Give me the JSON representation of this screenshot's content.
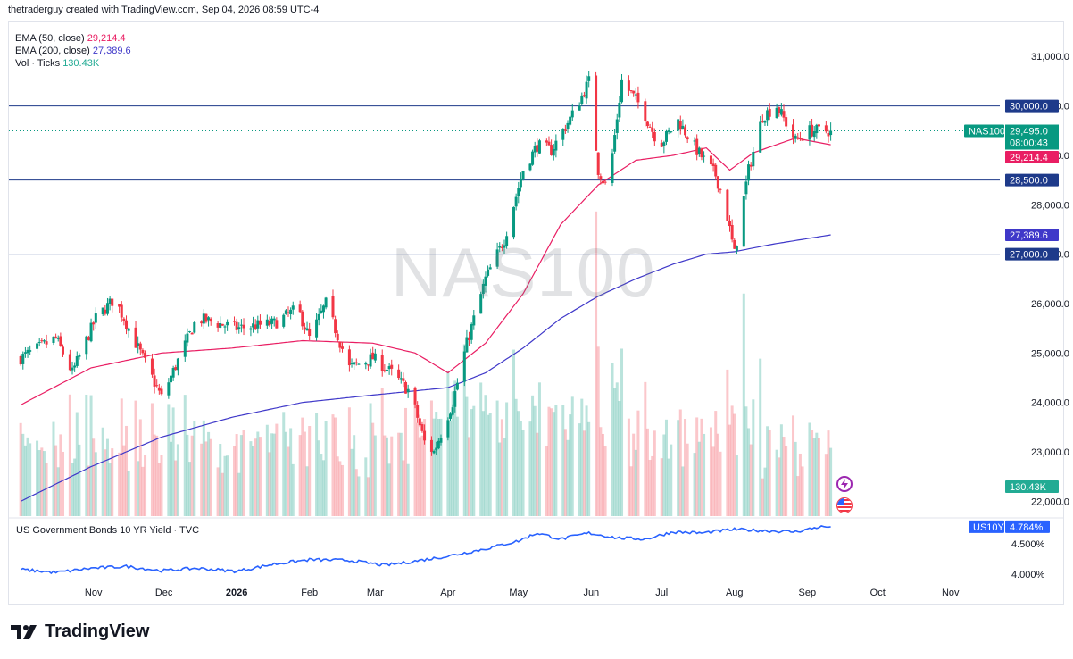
{
  "header": {
    "credit": "thetraderguy created with TradingView.com, Sep 04, 2026 08:59 UTC-4"
  },
  "watermark": "NAS100",
  "legend": {
    "ema50": {
      "label": "EMA (50, close)",
      "value": "29,214.4"
    },
    "ema200": {
      "label": "EMA (200, close)",
      "value": "27,389.6"
    },
    "vol": {
      "label": "Vol · Ticks",
      "value": "130.43K"
    }
  },
  "lower_pane": {
    "title": "US Government Bonds 10 YR Yield · TVC"
  },
  "footer": {
    "brand": "TradingView"
  },
  "colors": {
    "up": "#089981",
    "down": "#f23645",
    "ema50": "#e91e63",
    "ema200": "#3f38c9",
    "level": "#2962ff",
    "yield": "#2962ff",
    "volume_label": "#22ab94"
  },
  "chart_data": [
    {
      "type": "candlestick",
      "symbol": "NAS100",
      "ylim": [
        21700,
        31600
      ],
      "y_ticks": [
        22000,
        23000,
        24000,
        25000,
        26000,
        27000,
        28000,
        29000,
        30000,
        31000
      ],
      "y_tick_labels": [
        "22,000.0",
        "23,000.0",
        "24,000.0",
        "25,000.0",
        "26,000.0",
        "27,000.0",
        "28,000.0",
        "29,000.0",
        "30,000.0",
        "31,000.0"
      ],
      "x_labels": [
        "Nov",
        "Dec",
        "2026",
        "Feb",
        "Mar",
        "Apr",
        "May",
        "Jun",
        "Jul",
        "Aug",
        "Sep",
        "Oct",
        "Nov"
      ],
      "x_label_days": [
        31,
        61,
        92,
        123,
        151,
        182,
        212,
        243,
        273,
        304,
        335,
        365,
        396
      ],
      "candle_range_days": [
        0,
        345
      ],
      "horizontal_levels": [
        {
          "value": 30000,
          "label": "30,000.0"
        },
        {
          "value": 28500,
          "label": "28,500.0"
        },
        {
          "value": 27000,
          "label": "27,000.0"
        }
      ],
      "last_price": {
        "symbol": "NAS100",
        "value": 29495,
        "label": "29,495.0",
        "countdown": "08:00:43"
      },
      "ema50_label": {
        "value": 29214.4,
        "label": "29,214.4"
      },
      "ema200_label": {
        "value": 27389.6,
        "label": "27,389.6"
      },
      "volume_label": "130.43K",
      "close_anchors": [
        [
          0,
          24900
        ],
        [
          15,
          25300
        ],
        [
          22,
          24600
        ],
        [
          32,
          25700
        ],
        [
          40,
          26100
        ],
        [
          52,
          24900
        ],
        [
          60,
          24100
        ],
        [
          75,
          25700
        ],
        [
          84,
          25600
        ],
        [
          92,
          25500
        ],
        [
          108,
          25600
        ],
        [
          118,
          25900
        ],
        [
          123,
          25300
        ],
        [
          130,
          26000
        ],
        [
          140,
          24700
        ],
        [
          150,
          24900
        ],
        [
          158,
          24600
        ],
        [
          166,
          24200
        ],
        [
          172,
          23200
        ],
        [
          176,
          23000
        ],
        [
          184,
          24000
        ],
        [
          190,
          25200
        ],
        [
          198,
          26500
        ],
        [
          206,
          27300
        ],
        [
          214,
          28700
        ],
        [
          220,
          29200
        ],
        [
          226,
          29100
        ],
        [
          236,
          29900
        ],
        [
          242,
          30500
        ],
        [
          246,
          28700
        ],
        [
          250,
          28300
        ],
        [
          256,
          30500
        ],
        [
          264,
          30000
        ],
        [
          272,
          29200
        ],
        [
          280,
          29700
        ],
        [
          288,
          29100
        ],
        [
          296,
          28600
        ],
        [
          300,
          28000
        ],
        [
          304,
          27000
        ],
        [
          310,
          28700
        ],
        [
          316,
          29800
        ],
        [
          322,
          30000
        ],
        [
          330,
          29300
        ],
        [
          336,
          29500
        ],
        [
          345,
          29495
        ]
      ],
      "ema50_anchors": [
        [
          0,
          23950
        ],
        [
          30,
          24700
        ],
        [
          60,
          25000
        ],
        [
          90,
          25100
        ],
        [
          120,
          25250
        ],
        [
          150,
          25200
        ],
        [
          168,
          25000
        ],
        [
          182,
          24600
        ],
        [
          198,
          25200
        ],
        [
          214,
          26200
        ],
        [
          230,
          27600
        ],
        [
          246,
          28400
        ],
        [
          262,
          28900
        ],
        [
          278,
          29000
        ],
        [
          292,
          29150
        ],
        [
          302,
          28700
        ],
        [
          312,
          29050
        ],
        [
          330,
          29350
        ],
        [
          345,
          29214
        ]
      ],
      "ema200_anchors": [
        [
          0,
          22000
        ],
        [
          30,
          22700
        ],
        [
          60,
          23300
        ],
        [
          90,
          23700
        ],
        [
          120,
          24000
        ],
        [
          150,
          24150
        ],
        [
          182,
          24300
        ],
        [
          198,
          24600
        ],
        [
          214,
          25100
        ],
        [
          230,
          25700
        ],
        [
          246,
          26150
        ],
        [
          262,
          26500
        ],
        [
          278,
          26800
        ],
        [
          292,
          27000
        ],
        [
          304,
          27050
        ],
        [
          320,
          27200
        ],
        [
          345,
          27390
        ]
      ]
    },
    {
      "type": "line",
      "symbol": "US10Y",
      "ylim": [
        3.9,
        4.9
      ],
      "y_ticks": [
        4.0,
        4.5
      ],
      "y_tick_labels": [
        "4.000%",
        "4.500%"
      ],
      "last_value": {
        "symbol": "US10Y",
        "value": 4.784,
        "label": "4.784%"
      },
      "anchors": [
        [
          0,
          4.08
        ],
        [
          15,
          4.03
        ],
        [
          30,
          4.1
        ],
        [
          45,
          4.13
        ],
        [
          60,
          4.06
        ],
        [
          75,
          4.1
        ],
        [
          92,
          4.05
        ],
        [
          108,
          4.17
        ],
        [
          123,
          4.24
        ],
        [
          140,
          4.23
        ],
        [
          155,
          4.15
        ],
        [
          165,
          4.2
        ],
        [
          182,
          4.3
        ],
        [
          198,
          4.42
        ],
        [
          212,
          4.55
        ],
        [
          220,
          4.68
        ],
        [
          230,
          4.58
        ],
        [
          242,
          4.68
        ],
        [
          254,
          4.6
        ],
        [
          266,
          4.58
        ],
        [
          278,
          4.7
        ],
        [
          290,
          4.68
        ],
        [
          304,
          4.74
        ],
        [
          316,
          4.72
        ],
        [
          330,
          4.7
        ],
        [
          340,
          4.78
        ],
        [
          345,
          4.784
        ]
      ]
    }
  ]
}
